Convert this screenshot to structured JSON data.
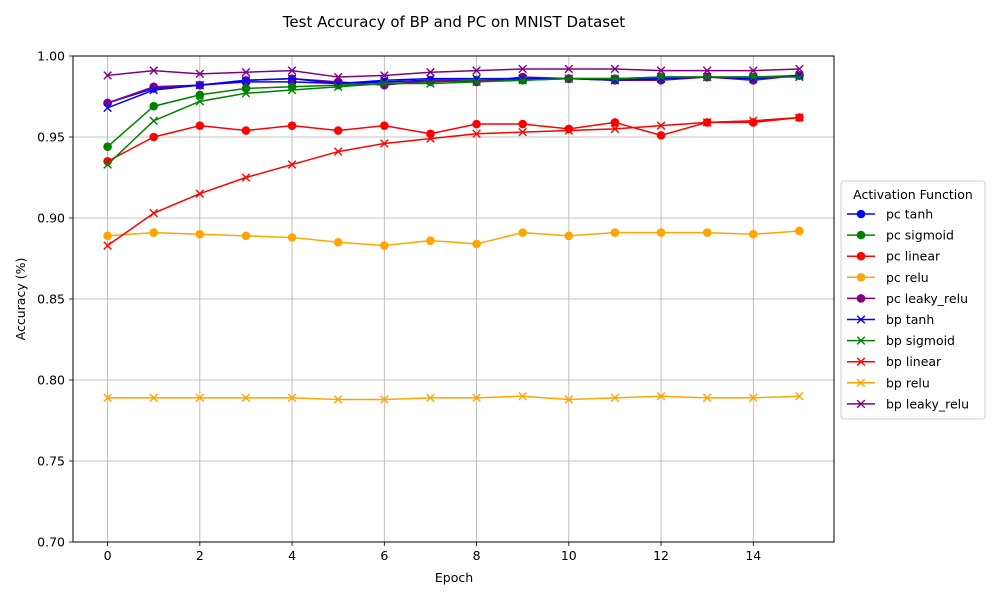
{
  "chart_data": {
    "type": "line",
    "title": "Test Accuracy of BP and PC on MNIST Dataset",
    "xlabel": "Epoch",
    "ylabel": "Accuracy (%)",
    "xlim": [
      -0.75,
      15.75
    ],
    "ylim": [
      0.7,
      1.0
    ],
    "xticks": [
      0,
      2,
      4,
      6,
      8,
      10,
      12,
      14
    ],
    "yticks": [
      "0.70",
      "0.75",
      "0.80",
      "0.85",
      "0.90",
      "0.95",
      "1.00"
    ],
    "grid": true,
    "legend": {
      "title": "Activation Function",
      "placement": "right-outside"
    },
    "x": [
      0,
      1,
      2,
      3,
      4,
      5,
      6,
      7,
      8,
      9,
      10,
      11,
      12,
      13,
      14,
      15
    ],
    "series": [
      {
        "name": "pc tanh",
        "color": "#0000ff",
        "marker": "circle",
        "values": [
          0.971,
          0.98,
          0.982,
          0.984,
          0.984,
          0.983,
          0.984,
          0.985,
          0.985,
          0.986,
          0.986,
          0.986,
          0.986,
          0.987,
          0.986,
          0.988
        ]
      },
      {
        "name": "pc sigmoid",
        "color": "#008000",
        "marker": "circle",
        "values": [
          0.944,
          0.969,
          0.976,
          0.98,
          0.981,
          0.982,
          0.983,
          0.984,
          0.985,
          0.985,
          0.986,
          0.986,
          0.987,
          0.987,
          0.987,
          0.988
        ]
      },
      {
        "name": "pc linear",
        "color": "#ff0000",
        "marker": "circle",
        "values": [
          0.935,
          0.95,
          0.957,
          0.954,
          0.957,
          0.954,
          0.957,
          0.952,
          0.958,
          0.958,
          0.955,
          0.959,
          0.951,
          0.959,
          0.959,
          0.962
        ]
      },
      {
        "name": "pc relu",
        "color": "#ffa500",
        "marker": "circle",
        "values": [
          0.889,
          0.891,
          0.89,
          0.889,
          0.888,
          0.885,
          0.883,
          0.886,
          0.884,
          0.891,
          0.889,
          0.891,
          0.891,
          0.891,
          0.89,
          0.892
        ]
      },
      {
        "name": "pc leaky_relu",
        "color": "#800080",
        "marker": "circle",
        "values": [
          0.971,
          0.981,
          0.982,
          0.985,
          0.986,
          0.984,
          0.982,
          0.985,
          0.984,
          0.987,
          0.986,
          0.985,
          0.985,
          0.987,
          0.985,
          0.988
        ]
      },
      {
        "name": "bp tanh",
        "color": "#0000ff",
        "marker": "x",
        "values": [
          0.968,
          0.979,
          0.982,
          0.985,
          0.986,
          0.983,
          0.985,
          0.986,
          0.986,
          0.986,
          0.986,
          0.985,
          0.986,
          0.987,
          0.986,
          0.988
        ]
      },
      {
        "name": "bp sigmoid",
        "color": "#008000",
        "marker": "x",
        "values": [
          0.933,
          0.96,
          0.972,
          0.977,
          0.979,
          0.981,
          0.983,
          0.983,
          0.984,
          0.985,
          0.986,
          0.986,
          0.987,
          0.987,
          0.987,
          0.987
        ]
      },
      {
        "name": "bp linear",
        "color": "#ff0000",
        "marker": "x",
        "values": [
          0.883,
          0.903,
          0.915,
          0.925,
          0.933,
          0.941,
          0.946,
          0.949,
          0.952,
          0.953,
          0.954,
          0.955,
          0.957,
          0.959,
          0.96,
          0.962
        ]
      },
      {
        "name": "bp relu",
        "color": "#ffa500",
        "marker": "x",
        "values": [
          0.789,
          0.789,
          0.789,
          0.789,
          0.789,
          0.788,
          0.788,
          0.789,
          0.789,
          0.79,
          0.788,
          0.789,
          0.79,
          0.789,
          0.789,
          0.79
        ]
      },
      {
        "name": "bp leaky_relu",
        "color": "#800080",
        "marker": "x",
        "values": [
          0.988,
          0.991,
          0.989,
          0.99,
          0.991,
          0.987,
          0.988,
          0.99,
          0.991,
          0.992,
          0.992,
          0.992,
          0.991,
          0.991,
          0.991,
          0.992
        ]
      }
    ]
  }
}
